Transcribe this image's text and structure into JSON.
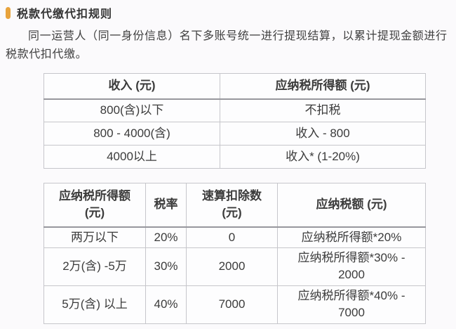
{
  "page": {
    "title": "税款代缴代扣规则",
    "intro": "同一运营人（同一身份信息）名下多账号统一进行提现结算，以累计提现金额进行税款代扣代缴。"
  },
  "colors": {
    "accent": "#E8A33C",
    "text": "#3B3B3B",
    "table_border": "#C6C6CB",
    "header_divider": "#97979D",
    "page_background": "#FBFAFC",
    "cell_background": "#FDFDFE"
  },
  "income_table": {
    "headers": [
      "收入 (元)",
      "应纳税所得额 (元)"
    ],
    "rows": [
      [
        "800(含)以下",
        "不扣税"
      ],
      [
        "800 - 4000(含)",
        "收入 - 800"
      ],
      [
        "4000以上",
        "收入* (1-20%)"
      ]
    ]
  },
  "tax_table": {
    "headers": [
      "应纳税所得额\n(元)",
      "税率",
      "速算扣除数\n(元)",
      "应纳税额 (元)"
    ],
    "rows": [
      [
        "两万以下",
        "20%",
        "0",
        "应纳税所得额*20%"
      ],
      [
        "2万(含) -5万",
        "30%",
        "2000",
        "应纳税所得额*30% -\n2000"
      ],
      [
        "5万(含) 以上",
        "40%",
        "7000",
        "应纳税所得额*40% -\n7000"
      ]
    ]
  }
}
